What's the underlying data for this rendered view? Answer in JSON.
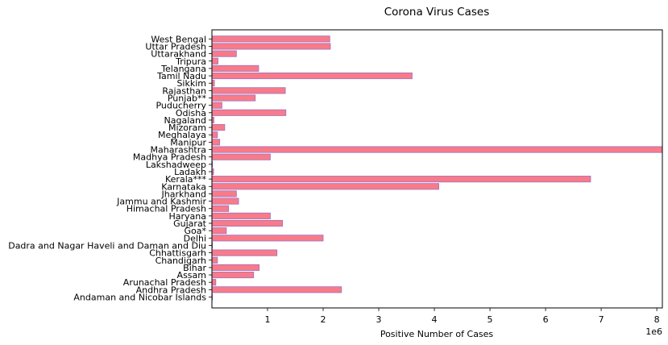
{
  "chart_data": {
    "type": "bar",
    "orientation": "horizontal",
    "title": "Corona Virus Cases",
    "xlabel": "Positive Number of Cases",
    "ylabel": "",
    "x_offset_text": "1e6",
    "xlim": [
      0,
      8100000
    ],
    "x_ticks": [
      1000000,
      2000000,
      3000000,
      4000000,
      5000000,
      6000000,
      7000000,
      8000000
    ],
    "x_tick_labels": [
      "1",
      "2",
      "3",
      "4",
      "5",
      "6",
      "7",
      "8"
    ],
    "grid": false,
    "bar_color": "#f87b89",
    "bar_edge_color": "#9e6fc2",
    "categories": [
      "Andaman and Nicobar Islands",
      "Andhra Pradesh",
      "Arunachal Pradesh",
      "Assam",
      "Bihar",
      "Chandigarh",
      "Chhattisgarh",
      "Dadra and Nagar Haveli and Daman and Diu",
      "Delhi",
      "Goa*",
      "Gujarat",
      "Haryana",
      "Himachal Pradesh",
      "Jammu and Kashmir",
      "Jharkhand",
      "Karnataka",
      "Kerala***",
      "Ladakh",
      "Lakshadweep",
      "Madhya Pradesh",
      "Maharashtra",
      "Manipur",
      "Meghalaya",
      "Mizoram",
      "Nagaland",
      "Odisha",
      "Puducherry",
      "Punjab**",
      "Rajasthan",
      "Sikkim",
      "Tamil Nadu",
      "Telangana",
      "Tripura",
      "Uttarakhand",
      "Uttar Pradesh",
      "West Bengal"
    ],
    "values": [
      10000,
      2330000,
      70000,
      750000,
      850000,
      100000,
      1170000,
      11000,
      2000000,
      260000,
      1270000,
      1050000,
      300000,
      480000,
      440000,
      4080000,
      6810000,
      30000,
      11000,
      1050000,
      8150000,
      140000,
      100000,
      230000,
      36000,
      1330000,
      180000,
      780000,
      1320000,
      45000,
      3600000,
      840000,
      110000,
      440000,
      2130000,
      2120000
    ]
  }
}
